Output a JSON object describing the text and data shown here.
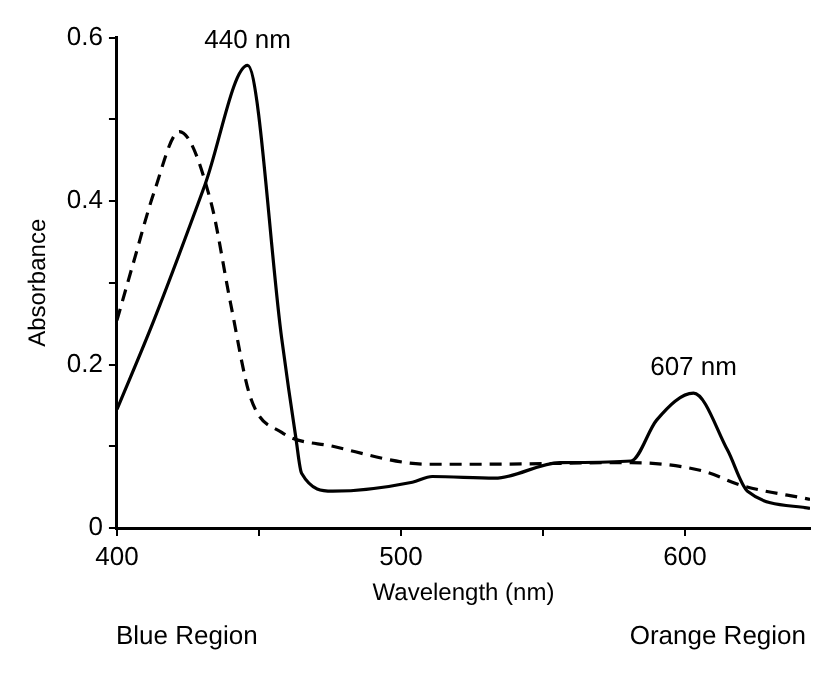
{
  "chart_data": {
    "type": "line",
    "xlabel": "Wavelength (nm)",
    "ylabel": "Absorbance",
    "xlim": [
      400,
      644
    ],
    "xticks": [
      400,
      {
        "value": 450,
        "label": null
      },
      500,
      {
        "value": 550,
        "label": null
      },
      600
    ],
    "ylim": [
      0,
      0.6
    ],
    "yticks": [
      0,
      {
        "value": 0.1,
        "label": null
      },
      0.2,
      {
        "value": 0.3,
        "label": null
      },
      0.4,
      {
        "value": 0.5,
        "label": null
      },
      0.6
    ],
    "grid": false,
    "legend": false,
    "marker": "none",
    "series": [
      {
        "color": "#000000",
        "line_style": "solid",
        "x": [
          400,
          413,
          431,
          446,
          458,
          463,
          465,
          476,
          504,
          511,
          533,
          556,
          581,
          590,
          603,
          615,
          622,
          644
        ],
        "values": [
          0.145,
          0.254,
          0.42,
          0.566,
          0.232,
          0.11,
          0.067,
          0.045,
          0.056,
          0.063,
          0.061,
          0.08,
          0.082,
          0.132,
          0.165,
          0.095,
          0.045,
          0.024
        ]
      },
      {
        "color": "#000000",
        "line_style": "dashed",
        "x": [
          400,
          406,
          413,
          422,
          433,
          440,
          447,
          458,
          476,
          510,
          526,
          581,
          606,
          620,
          644
        ],
        "values": [
          0.254,
          0.327,
          0.41,
          0.485,
          0.4,
          0.275,
          0.16,
          0.117,
          0.1,
          0.078,
          0.078,
          0.08,
          0.07,
          0.052,
          0.035
        ]
      }
    ],
    "annotations": [
      {
        "text": "440 nm",
        "x": 446,
        "y": 0.566
      },
      {
        "text": "607 nm",
        "x": 603,
        "y": 0.165
      },
      "Blue Region",
      "Orange Region"
    ]
  }
}
